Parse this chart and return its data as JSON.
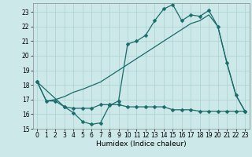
{
  "xlabel": "Humidex (Indice chaleur)",
  "bg_color": "#cce8e8",
  "line_color": "#1a6b6b",
  "xlim": [
    -0.5,
    23.5
  ],
  "ylim": [
    15,
    23.6
  ],
  "yticks": [
    15,
    16,
    17,
    18,
    19,
    20,
    21,
    22,
    23
  ],
  "xticks": [
    0,
    1,
    2,
    3,
    4,
    5,
    6,
    7,
    8,
    9,
    10,
    11,
    12,
    13,
    14,
    15,
    16,
    17,
    18,
    19,
    20,
    21,
    22,
    23
  ],
  "line1_x": [
    0,
    1,
    2,
    3,
    4,
    5,
    6,
    7,
    8,
    9,
    10,
    11,
    12,
    13,
    14,
    15,
    16,
    17,
    18,
    19,
    20,
    21,
    22,
    23
  ],
  "line1_y": [
    18.2,
    16.9,
    16.9,
    16.5,
    16.1,
    15.5,
    15.3,
    15.4,
    16.6,
    16.9,
    20.8,
    21.0,
    21.4,
    22.4,
    23.2,
    23.5,
    22.4,
    22.8,
    22.7,
    23.1,
    22.0,
    19.5,
    17.3,
    16.2
  ],
  "line2_x": [
    0,
    1,
    2,
    3,
    4,
    5,
    6,
    7,
    8,
    9,
    10,
    11,
    12,
    13,
    14,
    15,
    16,
    17,
    18,
    19,
    20,
    21,
    22,
    23
  ],
  "line2_y": [
    18.2,
    16.9,
    17.0,
    17.2,
    17.5,
    17.7,
    17.95,
    18.2,
    18.6,
    19.0,
    19.4,
    19.8,
    20.2,
    20.6,
    21.0,
    21.4,
    21.8,
    22.2,
    22.4,
    22.8,
    22.0,
    19.5,
    17.3,
    16.2
  ],
  "line3_x": [
    0,
    3,
    4,
    5,
    6,
    7,
    8,
    9,
    10,
    11,
    12,
    13,
    14,
    15,
    16,
    17,
    18,
    19,
    20,
    21,
    22,
    23
  ],
  "line3_y": [
    18.2,
    16.5,
    16.4,
    16.4,
    16.4,
    16.65,
    16.65,
    16.65,
    16.5,
    16.5,
    16.5,
    16.5,
    16.5,
    16.3,
    16.3,
    16.3,
    16.2,
    16.2,
    16.2,
    16.2,
    16.2,
    16.2
  ],
  "marker_size": 2.5,
  "line_width": 0.9,
  "grid_color": "#aad0d0",
  "label_fontsize": 6.5,
  "tick_fontsize": 5.5
}
